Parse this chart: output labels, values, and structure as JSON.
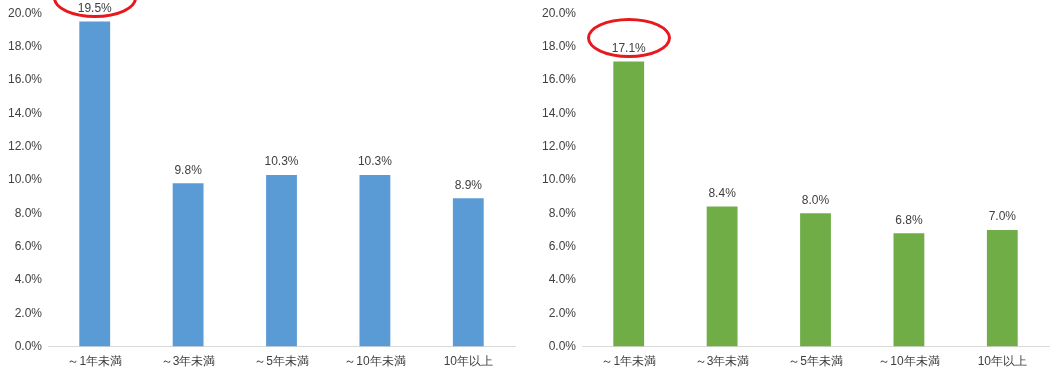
{
  "chart_data": [
    {
      "type": "bar",
      "categories": [
        "～1年未満",
        "～3年未満",
        "～5年未満",
        "～10年未満",
        "10年以上"
      ],
      "values": [
        19.5,
        9.8,
        10.3,
        10.3,
        8.9
      ],
      "color": "#5b9bd5",
      "value_labels": [
        "19.5%",
        "9.8%",
        "10.3%",
        "10.3%",
        "8.9%"
      ],
      "ylim": [
        0,
        20
      ],
      "yticks": [
        {
          "value": 0,
          "label": "0.0%"
        },
        {
          "value": 2,
          "label": "2.0%"
        },
        {
          "value": 4,
          "label": "4.0%"
        },
        {
          "value": 6,
          "label": "6.0%"
        },
        {
          "value": 8,
          "label": "8.0%"
        },
        {
          "value": 10,
          "label": "10.0%"
        },
        {
          "value": 12,
          "label": "12.0%"
        },
        {
          "value": 14,
          "label": "14.0%"
        },
        {
          "value": 16,
          "label": "16.0%"
        },
        {
          "value": 18,
          "label": "18.0%"
        },
        {
          "value": 20,
          "label": "20.0%"
        }
      ],
      "grid": false,
      "legend": false
    },
    {
      "type": "bar",
      "categories": [
        "～1年未満",
        "～3年未満",
        "～5年未満",
        "～10年未満",
        "10年以上"
      ],
      "values": [
        17.1,
        8.4,
        8.0,
        6.8,
        7.0
      ],
      "color": "#70ad47",
      "value_labels": [
        "17.1%",
        "8.4%",
        "8.0%",
        "6.8%",
        "7.0%"
      ],
      "ylim": [
        0,
        20
      ],
      "yticks": [
        {
          "value": 0,
          "label": "0.0%"
        },
        {
          "value": 2,
          "label": "2.0%"
        },
        {
          "value": 4,
          "label": "4.0%"
        },
        {
          "value": 6,
          "label": "6.0%"
        },
        {
          "value": 8,
          "label": "8.0%"
        },
        {
          "value": 10,
          "label": "10.0%"
        },
        {
          "value": 12,
          "label": "12.0%"
        },
        {
          "value": 14,
          "label": "14.0%"
        },
        {
          "value": 16,
          "label": "16.0%"
        },
        {
          "value": 18,
          "label": "18.0%"
        },
        {
          "value": 20,
          "label": "20.0%"
        }
      ],
      "grid": false,
      "legend": false
    }
  ]
}
